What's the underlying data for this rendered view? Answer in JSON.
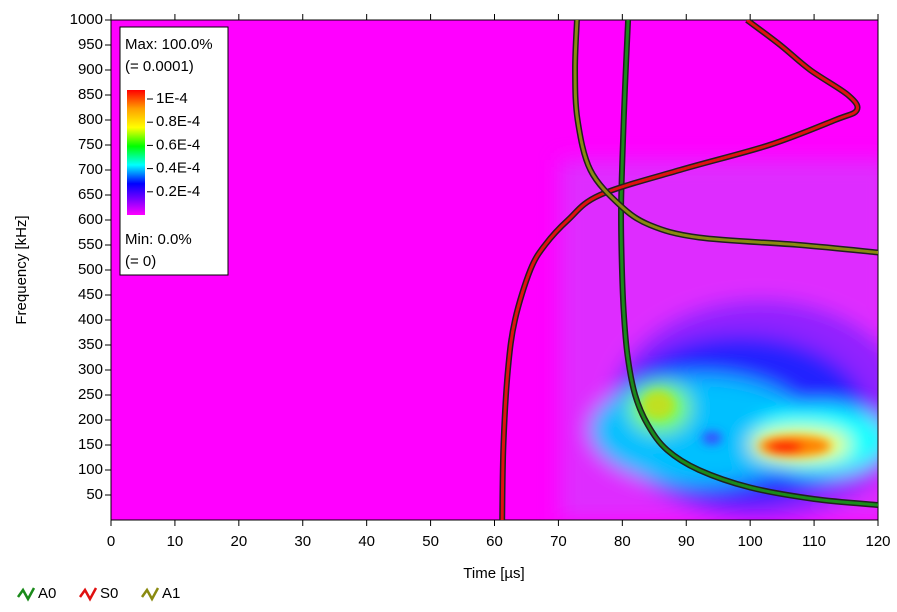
{
  "chart_data": {
    "type": "line",
    "x_label": "Time [µs]",
    "y_label": "Frequency [kHz]",
    "xlim": [
      0,
      120
    ],
    "xticks": [
      0,
      10,
      20,
      30,
      40,
      50,
      60,
      70,
      80,
      90,
      100,
      110,
      120
    ],
    "ylim": [
      0,
      1000
    ],
    "yticks": [
      50,
      100,
      150,
      200,
      250,
      300,
      350,
      400,
      450,
      500,
      550,
      600,
      650,
      700,
      750,
      800,
      850,
      900,
      950,
      1000
    ],
    "colorbar": {
      "max_label": "Max: 100.0%",
      "max_value_label": "(= 0.0001)",
      "min_label": "Min: 0.0%",
      "min_value_label": "(= 0)",
      "lim": [
        0,
        0.0001
      ],
      "ticks": [
        {
          "value": 0.0001,
          "label": "1E-4"
        },
        {
          "value": 8e-05,
          "label": "0.8E-4"
        },
        {
          "value": 6e-05,
          "label": "0.6E-4"
        },
        {
          "value": 4e-05,
          "label": "0.4E-4"
        },
        {
          "value": 2e-05,
          "label": "0.2E-4"
        }
      ]
    },
    "series": [
      {
        "name": "A0",
        "color": "#1a8a1a",
        "x": [
          120,
          110,
          100,
          92,
          87,
          84,
          82,
          80.8,
          80.2,
          79.9,
          79.8,
          80,
          80.4,
          80.9
        ],
        "values": [
          30,
          42,
          65,
          100,
          140,
          190,
          250,
          330,
          420,
          520,
          620,
          720,
          860,
          1000
        ]
      },
      {
        "name": "S0",
        "color": "#e01010",
        "x": [
          61.2,
          61.4,
          62.1,
          63.2,
          65.6,
          67.9,
          71.5,
          76.5,
          89,
          103,
          113.3,
          116.7,
          115.3,
          109.4,
          104.7,
          99.5
        ],
        "values": [
          0,
          150,
          300,
          400,
          500,
          550,
          600,
          650,
          700,
          750,
          800,
          820,
          850,
          900,
          950,
          1000
        ]
      },
      {
        "name": "A1",
        "color": "#8a8a10",
        "x": [
          72.9,
          72.6,
          73,
          75,
          79.6,
          84.3,
          92,
          107.8,
          120
        ],
        "values": [
          1000,
          900,
          800,
          700,
          630,
          590,
          565,
          550,
          535
        ]
      }
    ]
  }
}
